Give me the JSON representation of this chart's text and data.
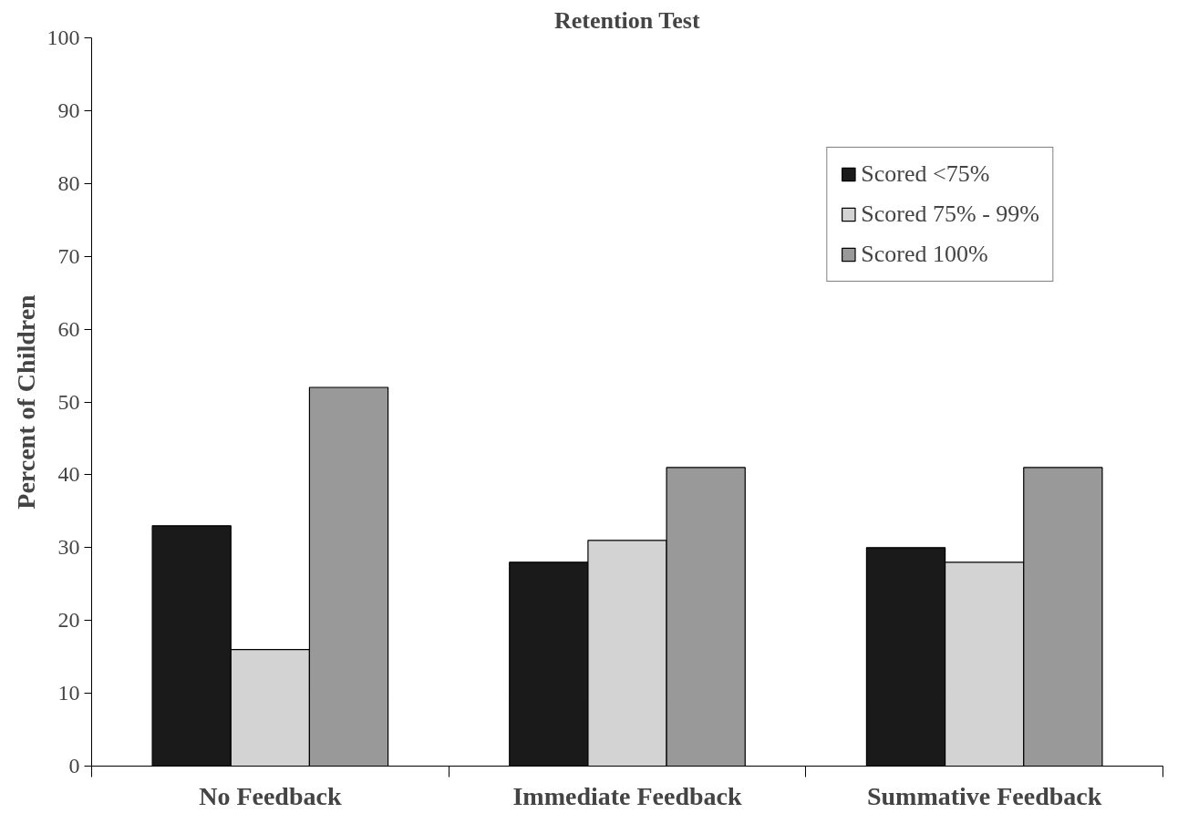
{
  "chart_data": {
    "type": "bar",
    "title": "Retention Test",
    "ylabel": "Percent of Children",
    "categories": [
      "No Feedback",
      "Immediate Feedback",
      "Summative Feedback"
    ],
    "series": [
      {
        "name": "Scored <75%",
        "color": "#1a1a1a",
        "values": [
          33,
          28,
          30
        ]
      },
      {
        "name": "Scored 75% - 99%",
        "color": "#d3d3d3",
        "values": [
          16,
          31,
          28
        ]
      },
      {
        "name": "Scored 100%",
        "color": "#999999",
        "values": [
          52,
          41,
          41
        ]
      }
    ],
    "ylim": [
      0,
      100
    ],
    "yticks": [
      0,
      10,
      20,
      30,
      40,
      50,
      60,
      70,
      80,
      90,
      100
    ],
    "grid": false,
    "legend": "top right"
  }
}
